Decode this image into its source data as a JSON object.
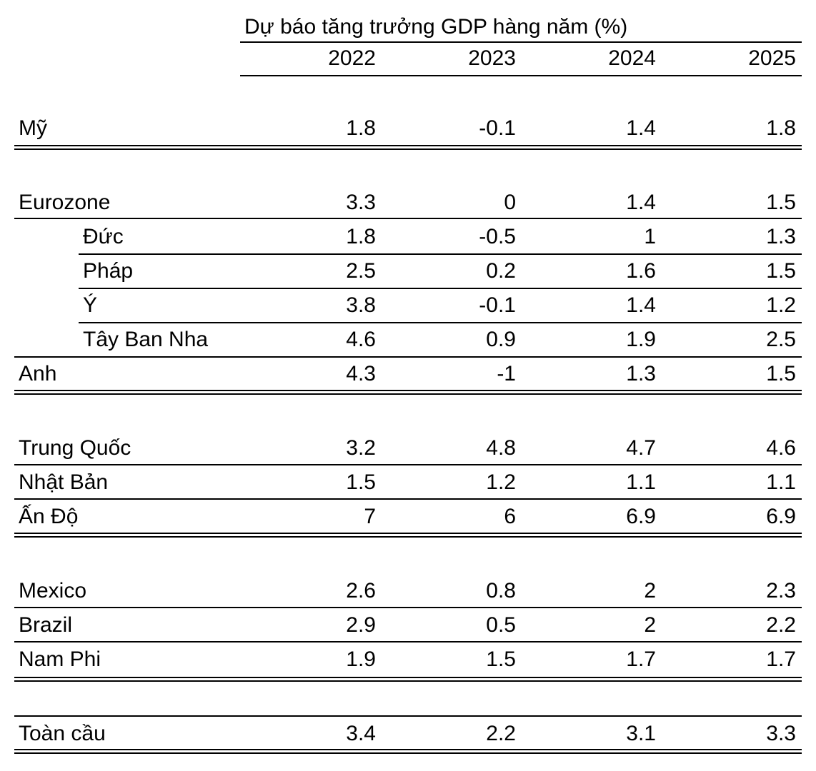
{
  "title": "Dự báo tăng trưởng GDP hàng năm (%)",
  "years": [
    "2022",
    "2023",
    "2024",
    "2025"
  ],
  "rows": [
    {
      "country": "Mỹ",
      "values": [
        "1.8",
        "-0.1",
        "1.4",
        "1.8"
      ]
    },
    {
      "country": "Eurozone",
      "values": [
        "3.3",
        "0",
        "1.4",
        "1.5"
      ]
    },
    {
      "country": "Đức",
      "values": [
        "1.8",
        "-0.5",
        "1",
        "1.3"
      ]
    },
    {
      "country": "Pháp",
      "values": [
        "2.5",
        "0.2",
        "1.6",
        "1.5"
      ]
    },
    {
      "country": "Ý",
      "values": [
        "3.8",
        "-0.1",
        "1.4",
        "1.2"
      ]
    },
    {
      "country": "Tây Ban Nha",
      "values": [
        "4.6",
        "0.9",
        "1.9",
        "2.5"
      ]
    },
    {
      "country": "Anh",
      "values": [
        "4.3",
        "-1",
        "1.3",
        "1.5"
      ]
    },
    {
      "country": "Trung Quốc",
      "values": [
        "3.2",
        "4.8",
        "4.7",
        "4.6"
      ]
    },
    {
      "country": "Nhật Bản",
      "values": [
        "1.5",
        "1.2",
        "1.1",
        "1.1"
      ]
    },
    {
      "country": "Ấn Độ",
      "values": [
        "7",
        "6",
        "6.9",
        "6.9"
      ]
    },
    {
      "country": "Mexico",
      "values": [
        "2.6",
        "0.8",
        "2",
        "2.3"
      ]
    },
    {
      "country": "Brazil",
      "values": [
        "2.9",
        "0.5",
        "2",
        "2.2"
      ]
    },
    {
      "country": "Nam Phi",
      "values": [
        "1.9",
        "1.5",
        "1.7",
        "1.7"
      ]
    },
    {
      "country": "Toàn cầu",
      "values": [
        "3.4",
        "2.2",
        "3.1",
        "3.3"
      ]
    }
  ]
}
